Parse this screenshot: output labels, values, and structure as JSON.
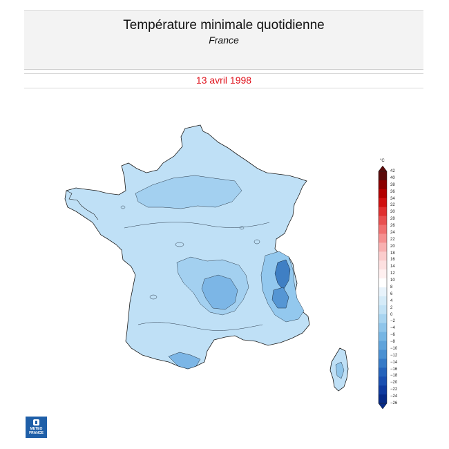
{
  "header": {
    "title": "Température minimale quotidienne",
    "subtitle": "France"
  },
  "date": "13 avril 1998",
  "legend": {
    "unit": "°C",
    "ticks": [
      "42",
      "40",
      "38",
      "36",
      "34",
      "32",
      "30",
      "28",
      "26",
      "24",
      "22",
      "20",
      "18",
      "16",
      "14",
      "12",
      "10",
      "8",
      "6",
      "4",
      "2",
      "0",
      "−2",
      "−4",
      "−6",
      "−8",
      "−10",
      "−12",
      "−14",
      "−16",
      "−18",
      "−20",
      "−22",
      "−24",
      "−26"
    ],
    "colors_top_to_bottom": [
      "#5a0a0a",
      "#8b0000",
      "#b30000",
      "#d01010",
      "#e03030",
      "#e85050",
      "#f07070",
      "#f59090",
      "#f8b0b0",
      "#fbcccc",
      "#fde0e0",
      "#fff0f0",
      "#ffffff",
      "#e8f3fb",
      "#d5ebf8",
      "#c2e2f5",
      "#a8d4f0",
      "#8fc5ea",
      "#76b5e3",
      "#5fa3db",
      "#4a90d2",
      "#367ac7",
      "#2563bb",
      "#1a4fb0",
      "#0f3a9e",
      "#072a86"
    ]
  },
  "map": {
    "region": "France",
    "fill_color": "#bfe0f6",
    "colder_zones_color": "#8cc3ea",
    "coldest_zones_color": "#3f7fc4"
  },
  "logo": {
    "line1": "METEO",
    "line2": "FRANCE"
  }
}
